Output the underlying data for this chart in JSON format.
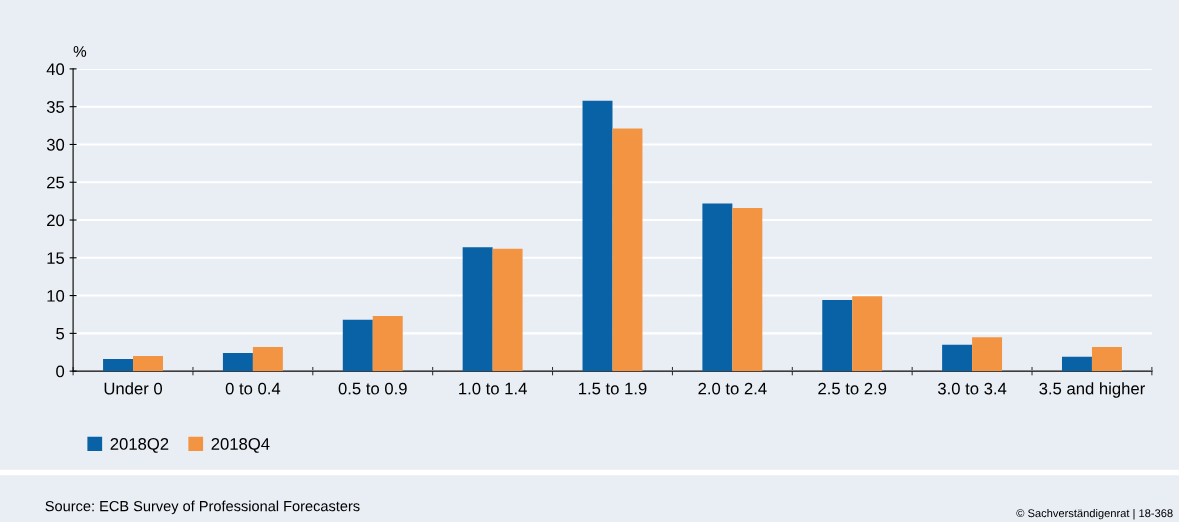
{
  "chart_data": {
    "type": "bar",
    "ylabel": "%",
    "categories": [
      "Under 0",
      "0 to 0.4",
      "0.5 to 0.9",
      "1.0 to 1.4",
      "1.5 to 1.9",
      "2.0 to 2.4",
      "2.5 to 2.9",
      "3.0 to 3.4",
      "3.5 and higher"
    ],
    "series": [
      {
        "name": "2018Q2",
        "color": "#0862a5",
        "values": [
          1.6,
          2.4,
          6.8,
          16.4,
          35.8,
          22.2,
          9.4,
          3.5,
          1.9
        ]
      },
      {
        "name": "2018Q4",
        "color": "#f39442",
        "values": [
          2.0,
          3.2,
          7.3,
          16.2,
          32.1,
          21.6,
          9.9,
          4.5,
          3.2
        ]
      }
    ],
    "ylim": [
      0,
      40
    ],
    "yticks": [
      0,
      5,
      10,
      15,
      20,
      25,
      30,
      35,
      40
    ],
    "grid": "y",
    "legend": "bottom left",
    "annotations": [
      "Source: ECB Survey of Professional Forecasters",
      "© Sachverständigenrat | 18-368"
    ]
  }
}
